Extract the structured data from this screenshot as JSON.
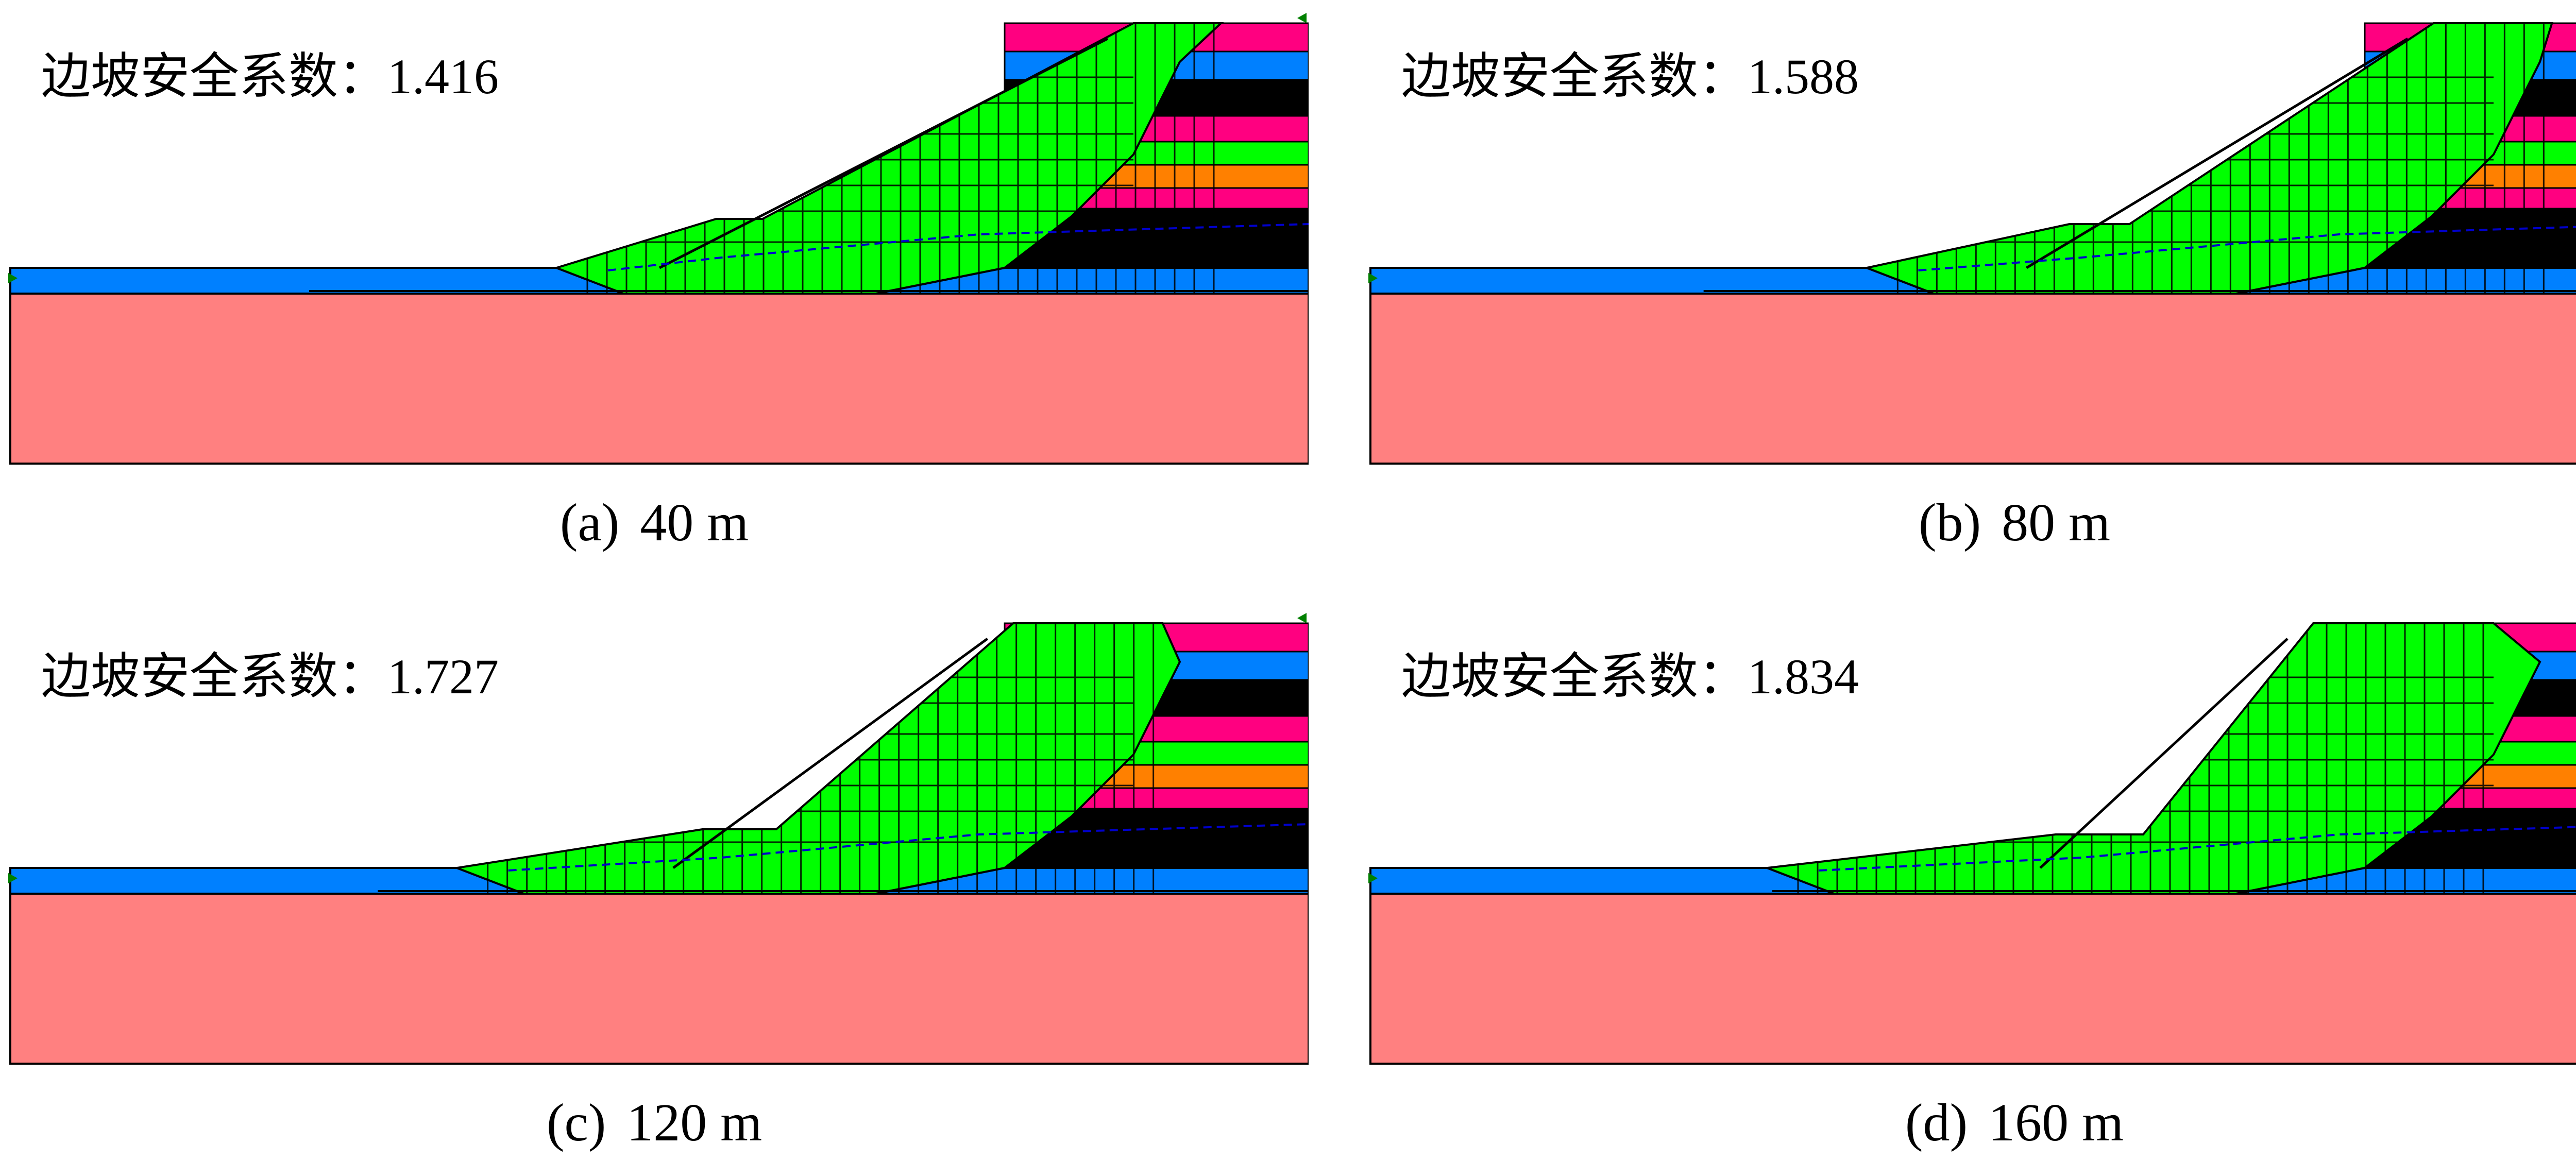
{
  "fos_label": "边坡安全系数：",
  "colors": {
    "foundation": "#ff8080",
    "water_blue": "#0080ff",
    "fill_green": "#00ff00",
    "magenta": "#ff0080",
    "black": "#000000",
    "orange": "#ff8000",
    "grid_line": "#000000",
    "phreatic": "#0000cc",
    "marker": "#008000"
  },
  "panels": [
    {
      "id": "a",
      "letter": "(a)",
      "length": "40 m",
      "fos": "1.416",
      "b": 40
    },
    {
      "id": "b",
      "letter": "(b)",
      "length": "80 m",
      "fos": "1.588",
      "b": 80
    },
    {
      "id": "c",
      "letter": "(c)",
      "length": "120 m",
      "fos": "1.727",
      "b": 120
    },
    {
      "id": "d",
      "letter": "(d)",
      "length": "160 m",
      "fos": "1.834",
      "b": 160
    }
  ]
}
